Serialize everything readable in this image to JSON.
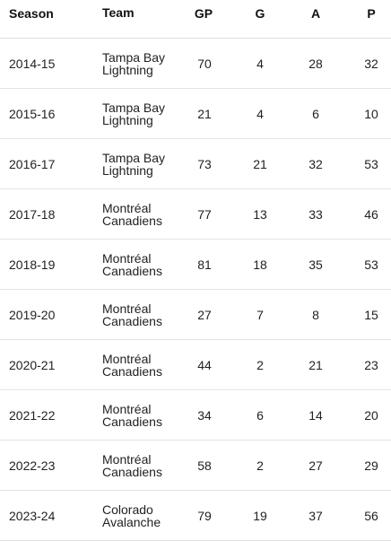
{
  "table": {
    "headers": {
      "season": "Season",
      "team": "Team",
      "gp": "GP",
      "g": "G",
      "a": "A",
      "p": "P"
    },
    "rows": [
      {
        "season": "2014-15",
        "team_line1": "Tampa Bay",
        "team_line2": "Lightning",
        "gp": "70",
        "g": "4",
        "a": "28",
        "p": "32"
      },
      {
        "season": "2015-16",
        "team_line1": "Tampa Bay",
        "team_line2": "Lightning",
        "gp": "21",
        "g": "4",
        "a": "6",
        "p": "10"
      },
      {
        "season": "2016-17",
        "team_line1": "Tampa Bay",
        "team_line2": "Lightning",
        "gp": "73",
        "g": "21",
        "a": "32",
        "p": "53"
      },
      {
        "season": "2017-18",
        "team_line1": "Montréal",
        "team_line2": "Canadiens",
        "gp": "77",
        "g": "13",
        "a": "33",
        "p": "46"
      },
      {
        "season": "2018-19",
        "team_line1": "Montréal",
        "team_line2": "Canadiens",
        "gp": "81",
        "g": "18",
        "a": "35",
        "p": "53"
      },
      {
        "season": "2019-20",
        "team_line1": "Montréal",
        "team_line2": "Canadiens",
        "gp": "27",
        "g": "7",
        "a": "8",
        "p": "15"
      },
      {
        "season": "2020-21",
        "team_line1": "Montréal",
        "team_line2": "Canadiens",
        "gp": "44",
        "g": "2",
        "a": "21",
        "p": "23"
      },
      {
        "season": "2021-22",
        "team_line1": "Montréal",
        "team_line2": "Canadiens",
        "gp": "34",
        "g": "6",
        "a": "14",
        "p": "20"
      },
      {
        "season": "2022-23",
        "team_line1": "Montréal",
        "team_line2": "Canadiens",
        "gp": "58",
        "g": "2",
        "a": "27",
        "p": "29"
      },
      {
        "season": "2023-24",
        "team_line1": "Colorado",
        "team_line2": "Avalanche",
        "gp": "79",
        "g": "19",
        "a": "37",
        "p": "56"
      }
    ]
  }
}
